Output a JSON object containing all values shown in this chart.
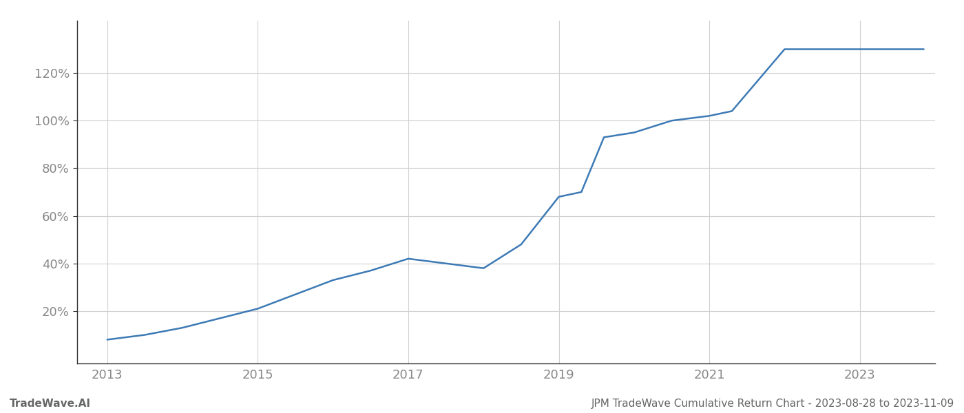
{
  "title": "JPM TradeWave Cumulative Return Chart - 2023-08-28 to 2023-11-09",
  "left_label": "TradeWave.AI",
  "line_color": "#3d7ab5",
  "background_color": "#ffffff",
  "grid_color": "#d0d0d0",
  "x_years": [
    2013.0,
    2013.5,
    2014.0,
    2014.5,
    2015.0,
    2015.5,
    2016.0,
    2016.5,
    2017.0,
    2017.5,
    2018.0,
    2018.5,
    2019.0,
    2019.3,
    2019.6,
    2020.0,
    2020.5,
    2021.0,
    2021.3,
    2022.0,
    2022.5,
    2023.0,
    2023.85
  ],
  "y_values": [
    0.08,
    0.1,
    0.13,
    0.17,
    0.21,
    0.27,
    0.33,
    0.37,
    0.42,
    0.4,
    0.38,
    0.48,
    0.68,
    0.7,
    0.93,
    0.95,
    1.0,
    1.02,
    1.04,
    1.3,
    1.3,
    1.3,
    1.3
  ],
  "x_ticks": [
    2013,
    2015,
    2017,
    2019,
    2021,
    2023
  ],
  "y_ticks": [
    0.2,
    0.4,
    0.6,
    0.8,
    1.0,
    1.2
  ],
  "y_labels": [
    "20%",
    "40%",
    "60%",
    "80%",
    "100%",
    "120%"
  ],
  "xlim": [
    2012.6,
    2024.0
  ],
  "ylim": [
    -0.02,
    1.42
  ],
  "figsize": [
    14.0,
    6.0
  ],
  "dpi": 100,
  "left_spine_color": "#333333",
  "bottom_spine_color": "#333333",
  "tick_label_color": "#888888",
  "footer_color": "#666666",
  "footer_fontsize": 11,
  "tick_fontsize": 13
}
